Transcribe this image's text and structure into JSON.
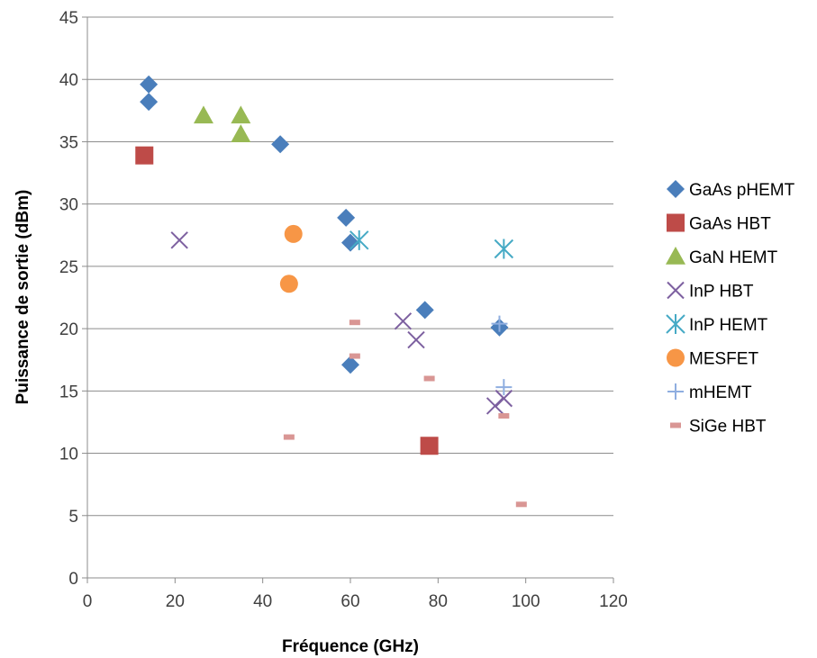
{
  "chart_data": {
    "type": "scatter",
    "title": "",
    "xlabel": "Fréquence (GHz)",
    "ylabel": "Puissance de sortie (dBm)",
    "xlim": [
      0,
      120
    ],
    "ylim": [
      0,
      45
    ],
    "x_ticks": [
      0,
      20,
      40,
      60,
      80,
      100,
      120
    ],
    "y_ticks": [
      0,
      5,
      10,
      15,
      20,
      25,
      30,
      35,
      40,
      45
    ],
    "grid": "horizontal",
    "legend_position": "right",
    "series": [
      {
        "name": "GaAs pHEMT",
        "marker": "diamond",
        "color": "#4a7ebb",
        "points": [
          [
            14,
            39.6
          ],
          [
            14,
            38.2
          ],
          [
            44,
            34.8
          ],
          [
            59,
            28.9
          ],
          [
            60,
            26.9
          ],
          [
            77,
            21.5
          ],
          [
            94,
            20.1
          ],
          [
            60,
            17.1
          ]
        ]
      },
      {
        "name": "GaAs HBT",
        "marker": "square",
        "color": "#be4b48",
        "points": [
          [
            13,
            33.9
          ],
          [
            78,
            10.6
          ]
        ]
      },
      {
        "name": "GaN HEMT",
        "marker": "triangle",
        "color": "#98b954",
        "points": [
          [
            26.5,
            37.1
          ],
          [
            35,
            37.1
          ],
          [
            35,
            35.6
          ]
        ]
      },
      {
        "name": "InP HBT",
        "marker": "x",
        "color": "#7d60a0",
        "points": [
          [
            21,
            27.1
          ],
          [
            72,
            20.6
          ],
          [
            75,
            19.1
          ],
          [
            95,
            14.4
          ],
          [
            93,
            13.8
          ]
        ]
      },
      {
        "name": "InP HEMT",
        "marker": "star",
        "color": "#46aac5",
        "points": [
          [
            62,
            27.1
          ],
          [
            95,
            26.4
          ]
        ]
      },
      {
        "name": "MESFET",
        "marker": "circle",
        "color": "#f79646",
        "points": [
          [
            47,
            27.6
          ],
          [
            46,
            23.6
          ]
        ]
      },
      {
        "name": "mHEMT",
        "marker": "plus",
        "color": "#8faee0",
        "points": [
          [
            94,
            20.4
          ],
          [
            95,
            15.3
          ]
        ]
      },
      {
        "name": "SiGe HBT",
        "marker": "dash",
        "color": "#d99694",
        "points": [
          [
            61,
            20.5
          ],
          [
            61,
            17.8
          ],
          [
            78,
            16
          ],
          [
            95,
            13
          ],
          [
            46,
            11.3
          ],
          [
            99,
            5.9
          ]
        ]
      }
    ]
  }
}
